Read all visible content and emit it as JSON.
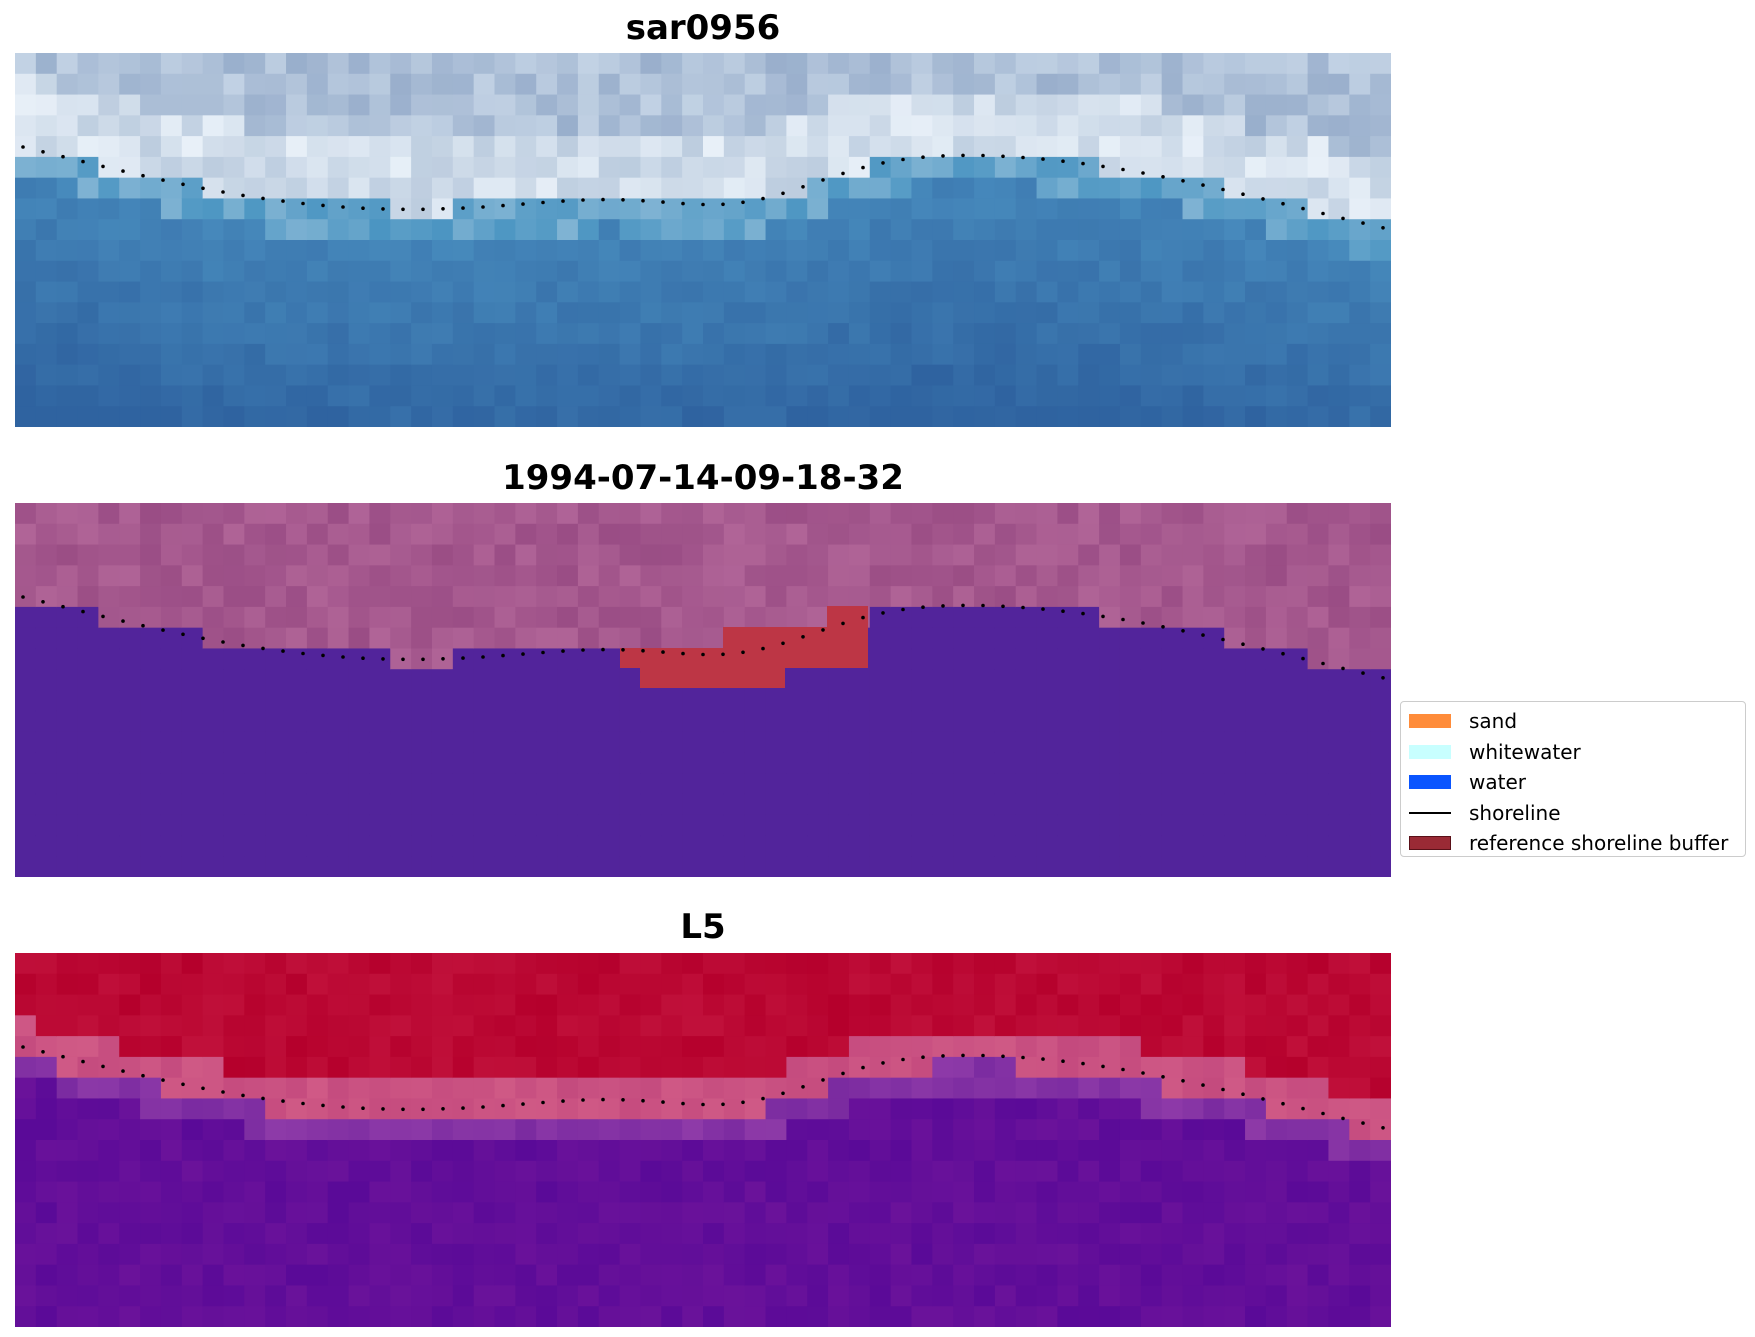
{
  "panels": [
    {
      "title": "sar0956",
      "kind": "rgb"
    },
    {
      "title": "1994-07-14-09-18-32",
      "kind": "class"
    },
    {
      "title": "L5",
      "kind": "index"
    }
  ],
  "legend": {
    "items": [
      {
        "label": "sand",
        "color": "#ff8c3a",
        "type": "patch"
      },
      {
        "label": "whitewater",
        "color": "#c8ffff",
        "type": "patch"
      },
      {
        "label": "water",
        "color": "#0a55ff",
        "type": "patch"
      },
      {
        "label": "shoreline",
        "color": "#000000",
        "type": "line"
      },
      {
        "label": "reference shoreline buffer",
        "color": "#9a2a35",
        "type": "patch"
      }
    ]
  },
  "colors": {
    "class_land": "#a04f86",
    "class_water": "#52249b",
    "buffer": "#bd3645",
    "index_high": "#bc0a38",
    "index_low": "#6a129a"
  }
}
